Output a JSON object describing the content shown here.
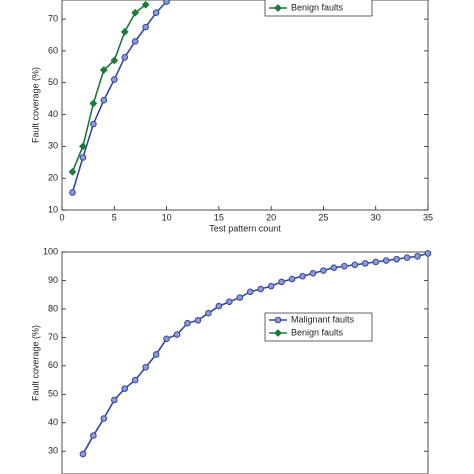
{
  "chart_data": [
    {
      "type": "line",
      "xlabel": "Test pattern count",
      "ylabel": "Fault coverage (%)",
      "xlim": [
        0,
        35
      ],
      "xticks": [
        0,
        5,
        10,
        15,
        20,
        25,
        30,
        35
      ],
      "ylim": [
        10,
        76
      ],
      "yticks": [
        10,
        20,
        30,
        40,
        50,
        60,
        70
      ],
      "series": [
        {
          "name": "Malignant faults",
          "color": "#34489a",
          "marker": "circle",
          "x": [
            1,
            2,
            3,
            4,
            5,
            6,
            7,
            8,
            9,
            10
          ],
          "values": [
            15.5,
            26.5,
            37,
            44.5,
            51,
            58,
            63,
            67.5,
            72,
            75.5
          ]
        },
        {
          "name": "Benign faults",
          "color": "#1f7a3c",
          "marker": "diamond",
          "x": [
            1,
            2,
            3,
            4,
            5,
            6,
            7,
            8
          ],
          "values": [
            22,
            30,
            43.5,
            54,
            57,
            66,
            72,
            74.5
          ]
        }
      ]
    },
    {
      "type": "line",
      "ylabel": "Fault coverage (%)",
      "xlim": [
        0,
        35
      ],
      "ylim": [
        22,
        100
      ],
      "yticks": [
        30,
        40,
        50,
        60,
        70,
        80,
        90,
        100
      ],
      "series": [
        {
          "name": "Malignant faults",
          "color": "#34489a",
          "marker": "circle",
          "x": [
            2,
            3,
            4,
            5,
            6,
            7,
            8,
            9,
            10,
            11,
            12,
            13,
            14,
            15,
            16,
            17,
            18,
            19,
            20,
            21,
            22,
            23,
            24,
            25,
            26,
            27,
            28,
            29,
            30,
            31,
            32,
            33,
            34,
            35
          ],
          "values": [
            29,
            35.5,
            41.5,
            48,
            52,
            55,
            59.5,
            64,
            69.5,
            71,
            75,
            76,
            78.5,
            81,
            82.5,
            84,
            86,
            87,
            88,
            89.5,
            90.5,
            91.5,
            92.5,
            93.5,
            94.5,
            95,
            95.5,
            96,
            96.5,
            97,
            97.5,
            98,
            98.5,
            99.5
          ]
        },
        {
          "name": "Benign faults",
          "color": "#1f7a3c",
          "marker": "diamond",
          "x": [],
          "values": []
        }
      ]
    }
  ]
}
